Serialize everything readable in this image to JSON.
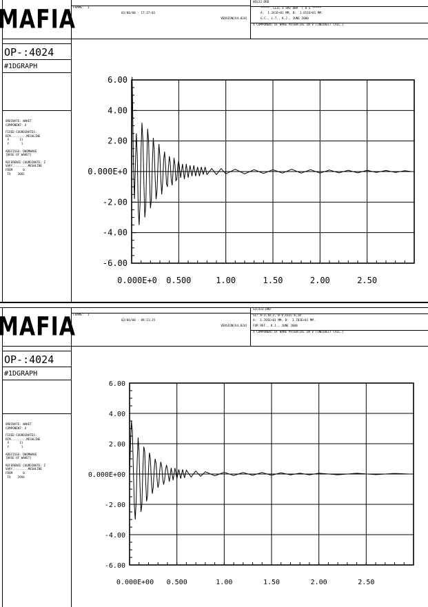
{
  "panels": [
    {
      "logo": "MAFIA",
      "op": "OP-:4024",
      "graph": "#1DGRAPH",
      "header": {
        "frame_label": "FRAME:  1",
        "date": "01/06/00 - 17:17:01",
        "version": "VERSION[V4.024]",
        "file": "WSS32.DRD",
        "line1": "*****  CLIC 3 SMZ DBA  T D S *****",
        "line2": "A:  1.341E+01 MM, B:  1.651E+01 MM.",
        "line3": "G.C., L.T., K.J., JUNE 2000",
        "line4": "X COMPONENT OF WAKE POTENTIAL IN V [INDIRECT CALC.]"
      },
      "meta": [
        "ORDINATE: WAKET",
        "COMPONENT: X",
        "",
        "FIXED COORDINATES:",
        "DIM.........MESHLINE",
        " X      11",
        " Y       1",
        "",
        "ABSCISSA: DKOMWAKE",
        "[BASE OF WAKET]",
        "",
        "REFERENCE COORDINATE: Z",
        "VARY.........MESHLINE",
        "FROM      0",
        " TO    3001"
      ]
    },
    {
      "logo": "MAFIA",
      "op": "OP-:4024",
      "graph": "#1DGRAPH",
      "header": {
        "frame_label": "FRAME:  1",
        "date": "02/06/00 - 09:11:25",
        "version": "VERSION[V4.024]",
        "file": "SIC432.DRD",
        "line1": "SI: A-3,10,2, B-V,CELL-6,18",
        "line2": "A:  1.705E+01 MM, B:  3.703E+01 MM.",
        "line3": "FOR REF., K.J., JUNE 2000",
        "line4": "X COMPONENT OF WAKE POTENTIAL IN V [INDIRECT CALC.]"
      },
      "meta": [
        "ORDINATE: WAKET",
        "COMPONENT: X",
        "",
        "FIXED COORDINATES:",
        "DIM.........MESHLINE",
        " X      11",
        " Y       1",
        "",
        "ABSCISSA: DKOMWAKE",
        "[BASE OF WAKET]",
        "",
        "REFERENCE COORDINATE: Z",
        "VARY.........MESHLINE",
        "FROM      0",
        " TO    2994"
      ]
    }
  ],
  "chart_data": [
    {
      "type": "line",
      "title": "",
      "xlabel": "",
      "ylabel": "",
      "xlim": [
        0,
        3.0
      ],
      "ylim": [
        -6,
        6
      ],
      "grid": true,
      "x_ticks": [
        0,
        0.5,
        1.0,
        1.5,
        2.0,
        2.5
      ],
      "x_tick_labels": [
        "0.000E+0",
        "0.500",
        "1.00",
        "1.50",
        "2.00",
        "2.50"
      ],
      "y_ticks": [
        6,
        4,
        2,
        0,
        -2,
        -4,
        -6
      ],
      "y_tick_labels": [
        "6.00",
        "4.00",
        "2.00",
        "0.000E+0",
        "-2.00",
        "-4.00",
        "-6.00"
      ],
      "series": [
        {
          "values_xy": [
            [
              0.0,
              0
            ],
            [
              0.005,
              6.2
            ],
            [
              0.01,
              4.5
            ],
            [
              0.02,
              0.3
            ],
            [
              0.03,
              -1.8
            ],
            [
              0.04,
              0.5
            ],
            [
              0.05,
              2.5
            ],
            [
              0.06,
              1.0
            ],
            [
              0.07,
              -2.5
            ],
            [
              0.08,
              -3.5
            ],
            [
              0.09,
              -2.0
            ],
            [
              0.1,
              1.5
            ],
            [
              0.11,
              3.2
            ],
            [
              0.12,
              2.0
            ],
            [
              0.13,
              -0.8
            ],
            [
              0.14,
              -3.0
            ],
            [
              0.15,
              -2.2
            ],
            [
              0.16,
              0.5
            ],
            [
              0.17,
              2.8
            ],
            [
              0.18,
              2.0
            ],
            [
              0.19,
              -0.5
            ],
            [
              0.2,
              -2.4
            ],
            [
              0.21,
              -1.8
            ],
            [
              0.22,
              0.6
            ],
            [
              0.23,
              2.2
            ],
            [
              0.24,
              1.4
            ],
            [
              0.25,
              -0.5
            ],
            [
              0.26,
              -1.8
            ],
            [
              0.27,
              -1.2
            ],
            [
              0.28,
              0.6
            ],
            [
              0.29,
              1.8
            ],
            [
              0.3,
              1.0
            ],
            [
              0.31,
              -0.6
            ],
            [
              0.32,
              -1.5
            ],
            [
              0.33,
              -0.6
            ],
            [
              0.34,
              0.8
            ],
            [
              0.35,
              1.3
            ],
            [
              0.36,
              0.4
            ],
            [
              0.37,
              -0.8
            ],
            [
              0.38,
              -1.0
            ],
            [
              0.39,
              0.2
            ],
            [
              0.4,
              1.0
            ],
            [
              0.41,
              0.6
            ],
            [
              0.42,
              -0.5
            ],
            [
              0.43,
              -0.9
            ],
            [
              0.44,
              0.0
            ],
            [
              0.45,
              0.9
            ],
            [
              0.46,
              0.4
            ],
            [
              0.47,
              -0.6
            ],
            [
              0.48,
              -0.5
            ],
            [
              0.49,
              0.4
            ],
            [
              0.5,
              0.7
            ],
            [
              0.52,
              -0.4
            ],
            [
              0.54,
              0.5
            ],
            [
              0.56,
              -0.5
            ],
            [
              0.58,
              0.5
            ],
            [
              0.6,
              -0.4
            ],
            [
              0.62,
              0.4
            ],
            [
              0.64,
              -0.3
            ],
            [
              0.66,
              0.4
            ],
            [
              0.68,
              -0.3
            ],
            [
              0.7,
              0.3
            ],
            [
              0.72,
              -0.3
            ],
            [
              0.74,
              0.3
            ],
            [
              0.76,
              -0.2
            ],
            [
              0.78,
              0.3
            ],
            [
              0.8,
              -0.2
            ],
            [
              0.85,
              0.2
            ],
            [
              0.9,
              -0.2
            ],
            [
              0.95,
              0.2
            ],
            [
              1.0,
              -0.15
            ],
            [
              1.1,
              0.15
            ],
            [
              1.2,
              -0.15
            ],
            [
              1.3,
              0.12
            ],
            [
              1.4,
              -0.12
            ],
            [
              1.5,
              0.12
            ],
            [
              1.6,
              -0.1
            ],
            [
              1.7,
              0.15
            ],
            [
              1.8,
              -0.1
            ],
            [
              1.9,
              0.12
            ],
            [
              2.0,
              -0.1
            ],
            [
              2.1,
              0.1
            ],
            [
              2.2,
              -0.08
            ],
            [
              2.3,
              0.08
            ],
            [
              2.4,
              -0.08
            ],
            [
              2.5,
              0.08
            ],
            [
              2.6,
              -0.06
            ],
            [
              2.7,
              0.07
            ],
            [
              2.8,
              -0.06
            ],
            [
              2.9,
              0.06
            ],
            [
              2.97,
              0.0
            ]
          ]
        }
      ]
    },
    {
      "type": "line",
      "title": "",
      "xlabel": "",
      "ylabel": "",
      "xlim": [
        0,
        3.0
      ],
      "ylim": [
        -6,
        6
      ],
      "grid": true,
      "x_ticks": [
        0,
        0.5,
        1.0,
        1.5,
        2.0,
        2.5
      ],
      "x_tick_labels": [
        "0.000E+00",
        "0.500",
        "1.00",
        "1.50",
        "2.00",
        "2.50"
      ],
      "y_ticks": [
        6,
        4,
        2,
        0,
        -2,
        -4,
        -6
      ],
      "y_tick_labels": [
        "6.00",
        "4.00",
        "2.00",
        "0.000E+00",
        "-2.00",
        "-4.00",
        "-6.00"
      ],
      "series": [
        {
          "values_xy": [
            [
              0.0,
              0
            ],
            [
              0.01,
              2.0
            ],
            [
              0.02,
              3.5
            ],
            [
              0.03,
              2.8
            ],
            [
              0.04,
              0.3
            ],
            [
              0.05,
              -2.0
            ],
            [
              0.06,
              -3.0
            ],
            [
              0.07,
              -1.8
            ],
            [
              0.08,
              0.8
            ],
            [
              0.09,
              2.4
            ],
            [
              0.1,
              1.5
            ],
            [
              0.11,
              -0.8
            ],
            [
              0.12,
              -2.5
            ],
            [
              0.13,
              -2.0
            ],
            [
              0.14,
              0.2
            ],
            [
              0.15,
              1.8
            ],
            [
              0.16,
              1.5
            ],
            [
              0.17,
              -0.4
            ],
            [
              0.18,
              -1.8
            ],
            [
              0.19,
              -1.4
            ],
            [
              0.2,
              0.3
            ],
            [
              0.21,
              1.4
            ],
            [
              0.22,
              1.0
            ],
            [
              0.23,
              -0.4
            ],
            [
              0.24,
              -1.3
            ],
            [
              0.25,
              -0.9
            ],
            [
              0.26,
              0.3
            ],
            [
              0.27,
              1.0
            ],
            [
              0.28,
              0.7
            ],
            [
              0.29,
              -0.3
            ],
            [
              0.3,
              -0.9
            ],
            [
              0.31,
              -0.6
            ],
            [
              0.32,
              0.3
            ],
            [
              0.33,
              0.8
            ],
            [
              0.34,
              0.5
            ],
            [
              0.35,
              -0.3
            ],
            [
              0.36,
              -0.7
            ],
            [
              0.37,
              -0.4
            ],
            [
              0.38,
              0.3
            ],
            [
              0.39,
              0.6
            ],
            [
              0.4,
              0.3
            ],
            [
              0.42,
              -0.5
            ],
            [
              0.44,
              0.4
            ],
            [
              0.46,
              -0.4
            ],
            [
              0.48,
              0.4
            ],
            [
              0.5,
              -0.3
            ],
            [
              0.52,
              0.3
            ],
            [
              0.54,
              -0.3
            ],
            [
              0.56,
              0.3
            ],
            [
              0.58,
              -0.25
            ],
            [
              0.6,
              0.25
            ],
            [
              0.65,
              -0.2
            ],
            [
              0.7,
              0.2
            ],
            [
              0.75,
              -0.15
            ],
            [
              0.8,
              0.15
            ],
            [
              0.9,
              -0.12
            ],
            [
              1.0,
              0.12
            ],
            [
              1.1,
              -0.1
            ],
            [
              1.2,
              0.1
            ],
            [
              1.3,
              -0.08
            ],
            [
              1.4,
              0.1
            ],
            [
              1.5,
              -0.08
            ],
            [
              1.6,
              0.08
            ],
            [
              1.7,
              -0.06
            ],
            [
              1.8,
              0.06
            ],
            [
              1.9,
              -0.06
            ],
            [
              2.0,
              0.06
            ],
            [
              2.2,
              -0.05
            ],
            [
              2.4,
              0.05
            ],
            [
              2.6,
              -0.04
            ],
            [
              2.8,
              0.04
            ],
            [
              2.95,
              0.0
            ]
          ]
        }
      ]
    }
  ]
}
